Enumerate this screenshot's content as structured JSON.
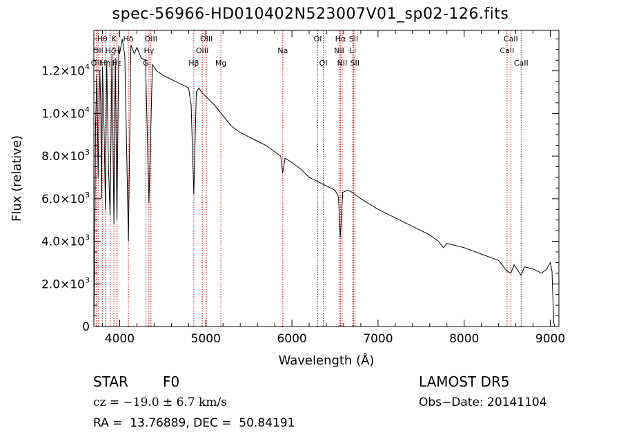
{
  "chart_data": {
    "type": "line",
    "title": "spec-56966-HD010402N523007V01_sp02-126.fits",
    "xlabel": "Wavelength (Å)",
    "ylabel": "Flux (relative)",
    "xlim": [
      3700,
      9100
    ],
    "ylim": [
      0,
      13900
    ],
    "grid": false,
    "legend": "none",
    "line_color": "#000000",
    "marker_color": "#cc0000",
    "x_ticks": [
      {
        "v": 4000,
        "label": "4000"
      },
      {
        "v": 5000,
        "label": "5000"
      },
      {
        "v": 6000,
        "label": "6000"
      },
      {
        "v": 7000,
        "label": "7000"
      },
      {
        "v": 8000,
        "label": "8000"
      },
      {
        "v": 9000,
        "label": "9000"
      }
    ],
    "y_ticks": [
      {
        "v": 0,
        "label": "0"
      },
      {
        "v": 2000,
        "label": "2.0×10",
        "exp": "3"
      },
      {
        "v": 4000,
        "label": "4.0×10",
        "exp": "3"
      },
      {
        "v": 6000,
        "label": "6.0×10",
        "exp": "3"
      },
      {
        "v": 8000,
        "label": "8.0×10",
        "exp": "3"
      },
      {
        "v": 10000,
        "label": "1.0×10",
        "exp": "4"
      },
      {
        "v": 12000,
        "label": "1.2×10",
        "exp": "4"
      }
    ],
    "series": [
      {
        "x": [
          3700,
          3710,
          3720,
          3735,
          3750,
          3770,
          3780,
          3789,
          3800,
          3820,
          3835,
          3850,
          3870,
          3889,
          3910,
          3933,
          3950,
          3968,
          3990,
          4000,
          4030,
          4060,
          4101,
          4130,
          4170,
          4200,
          4250,
          4300,
          4340,
          4380,
          4430,
          4500,
          4600,
          4700,
          4800,
          4830,
          4861,
          4890,
          4920,
          4950,
          5000,
          5100,
          5200,
          5300,
          5400,
          5500,
          5600,
          5700,
          5800,
          5870,
          5893,
          5920,
          6000,
          6100,
          6200,
          6300,
          6400,
          6450,
          6500,
          6540,
          6563,
          6590,
          6650,
          6700,
          6800,
          7000,
          7200,
          7400,
          7600,
          7700,
          7760,
          7800,
          8000,
          8200,
          8400,
          8498,
          8542,
          8580,
          8662,
          8700,
          8800,
          8900,
          8960,
          9000,
          9020,
          9040,
          9050
        ],
        "y": [
          0,
          3000,
          9500,
          11800,
          7000,
          12000,
          10500,
          6000,
          12200,
          9000,
          5500,
          12500,
          7500,
          5200,
          12800,
          4800,
          12600,
          5000,
          13200,
          12800,
          13500,
          12700,
          4000,
          13200,
          12800,
          13100,
          12600,
          12500,
          5800,
          12300,
          12000,
          11800,
          11600,
          11400,
          11200,
          10400,
          6200,
          11000,
          11200,
          11000,
          10800,
          10400,
          9900,
          9400,
          9100,
          8900,
          8700,
          8500,
          8200,
          8000,
          7200,
          7900,
          7700,
          7400,
          7000,
          6800,
          6600,
          6500,
          6400,
          6100,
          4200,
          6300,
          6400,
          6300,
          6000,
          5500,
          5100,
          4700,
          4300,
          4000,
          3700,
          3900,
          3700,
          3400,
          3100,
          2600,
          2500,
          2900,
          2400,
          2800,
          2700,
          2500,
          2700,
          3000,
          2600,
          200,
          0
        ]
      }
    ],
    "lines": [
      {
        "x": 3727,
        "label": "OII",
        "row": 2
      },
      {
        "x": 3750,
        "label": "OII",
        "row": 1
      },
      {
        "x": 3798,
        "label": "Hθ",
        "row": 0
      },
      {
        "x": 3835,
        "label": "Hη",
        "row": 2
      },
      {
        "x": 3889,
        "label": "Hζ",
        "row": 1
      },
      {
        "x": 3933,
        "label": "K",
        "row": 0
      },
      {
        "x": 3968,
        "label": "H",
        "row": 1
      },
      {
        "x": 3970,
        "label": "Hε",
        "row": 2
      },
      {
        "x": 4101,
        "label": "Hδ",
        "row": 0
      },
      {
        "x": 4304,
        "label": "G",
        "row": 2
      },
      {
        "x": 4340,
        "label": "Hγ",
        "row": 1
      },
      {
        "x": 4363,
        "label": "OIII",
        "row": 0
      },
      {
        "x": 4861,
        "label": "Hβ",
        "row": 2
      },
      {
        "x": 4959,
        "label": "OIII",
        "row": 1
      },
      {
        "x": 5007,
        "label": "OIII",
        "row": 0
      },
      {
        "x": 5175,
        "label": "Mg",
        "row": 2
      },
      {
        "x": 5894,
        "label": "Na",
        "row": 1
      },
      {
        "x": 6300,
        "label": "OI",
        "row": 0
      },
      {
        "x": 6364,
        "label": "OI",
        "row": 2
      },
      {
        "x": 6548,
        "label": "NII",
        "row": 1
      },
      {
        "x": 6563,
        "label": "Hα",
        "row": 0
      },
      {
        "x": 6583,
        "label": "NII",
        "row": 2
      },
      {
        "x": 6707,
        "label": "Li",
        "row": 1
      },
      {
        "x": 6716,
        "label": "SII",
        "row": 0
      },
      {
        "x": 6731,
        "label": "SII",
        "row": 2
      },
      {
        "x": 8498,
        "label": "CaII",
        "row": 1
      },
      {
        "x": 8542,
        "label": "CaII",
        "row": 0
      },
      {
        "x": 8662,
        "label": "CaII",
        "row": 2
      }
    ]
  },
  "footer": {
    "class_label": "STAR",
    "subclass": "F0",
    "survey": "LAMOST DR5",
    "cz": "cz = −19.0 ± 6.7 km/s",
    "obs_date": "Obs−Date: 20141104",
    "coords": "RA =  13.76889, DEC =  50.84191"
  }
}
